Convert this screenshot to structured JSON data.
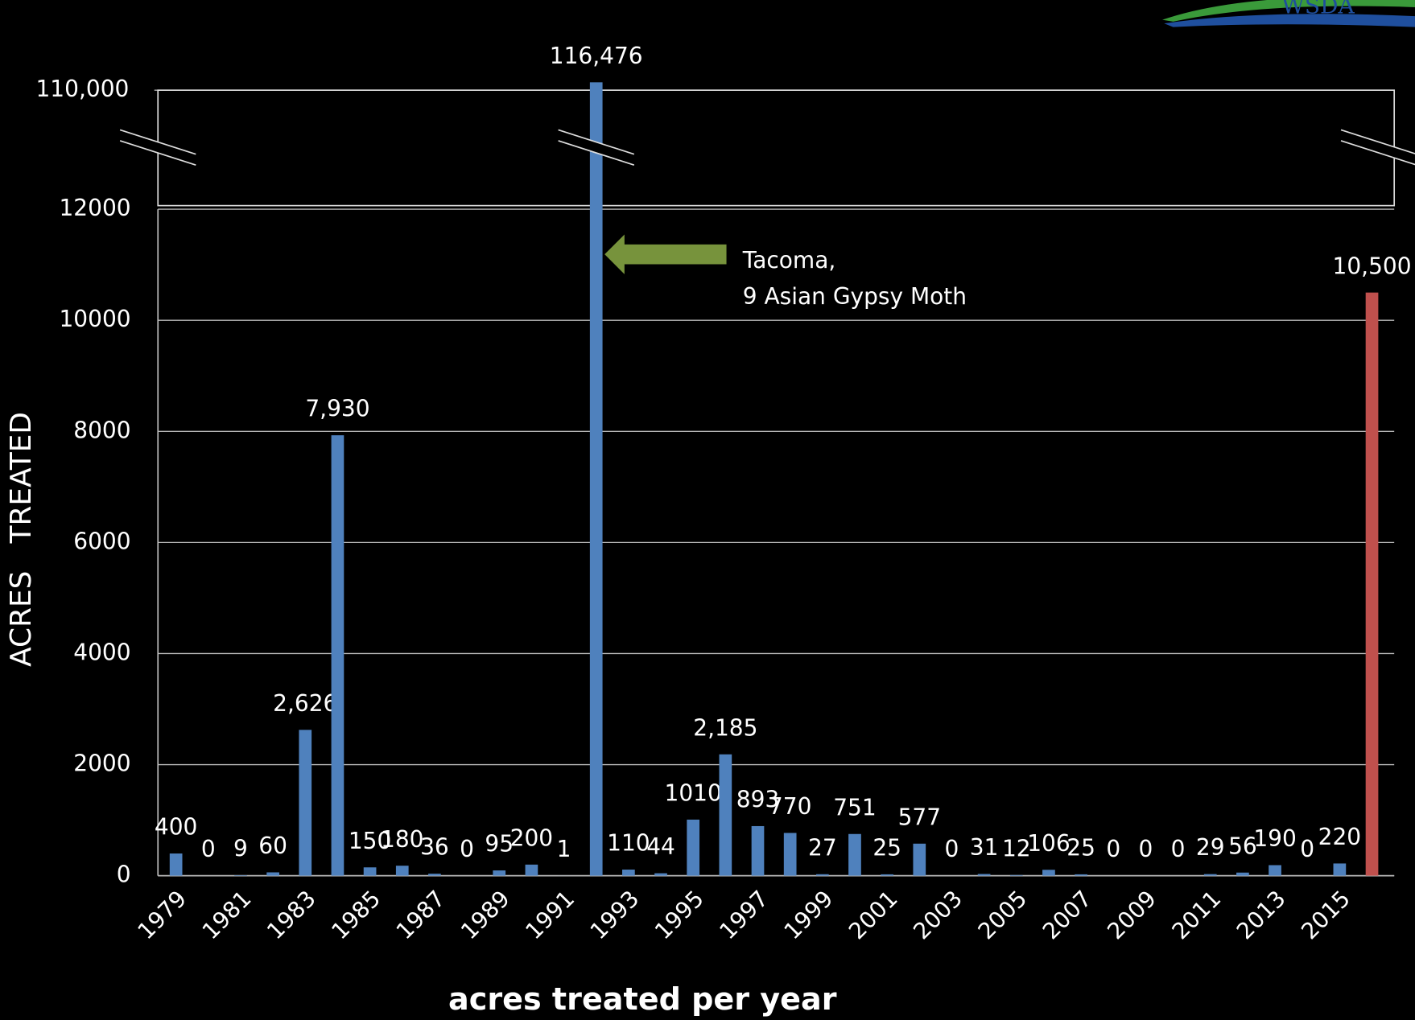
{
  "chart_data": {
    "type": "bar",
    "x_label": "acres treated per year",
    "y_label": "ACRES   TREATED",
    "logo_text": "WSDA",
    "annotation": [
      "Tacoma,",
      "9 Asian Gypsy Moth"
    ],
    "categories": [
      "1979",
      null,
      "1981",
      null,
      "1983",
      null,
      "1985",
      null,
      "1987",
      null,
      "1989",
      null,
      "1991",
      null,
      "1993",
      null,
      "1995",
      null,
      "1997",
      null,
      "1999",
      null,
      "2001",
      null,
      "2003",
      null,
      "2005",
      null,
      "2007",
      null,
      "2009",
      null,
      "2011",
      null,
      "2013",
      null,
      "2015",
      null
    ],
    "values": [
      400,
      0,
      9,
      60,
      2626,
      7930,
      150,
      180,
      36,
      0,
      95,
      200,
      1,
      116476,
      110,
      44,
      1010,
      2185,
      893,
      770,
      27,
      751,
      25,
      577,
      0,
      31,
      12,
      106,
      25,
      0,
      0,
      0,
      29,
      56,
      190,
      0,
      220,
      10500
    ],
    "value_labels": [
      "400",
      "0",
      "9",
      "60",
      "2,626",
      "7,930",
      "150",
      "180",
      "36",
      "0",
      "95",
      "200",
      "1",
      "116,476",
      "110",
      "44",
      "1010",
      "2,185",
      "893",
      "770",
      "27",
      "751",
      "25",
      "577",
      "0",
      "31",
      "12",
      "106",
      "25",
      "0",
      "0",
      "0",
      "29",
      "56",
      "190",
      "0",
      "220",
      "10,500"
    ],
    "colors": [
      "#4f81bd",
      "#4f81bd",
      "#4f81bd",
      "#4f81bd",
      "#4f81bd",
      "#4f81bd",
      "#4f81bd",
      "#4f81bd",
      "#4f81bd",
      "#4f81bd",
      "#4f81bd",
      "#4f81bd",
      "#4f81bd",
      "#4f81bd",
      "#4f81bd",
      "#4f81bd",
      "#4f81bd",
      "#4f81bd",
      "#4f81bd",
      "#4f81bd",
      "#4f81bd",
      "#4f81bd",
      "#4f81bd",
      "#4f81bd",
      "#4f81bd",
      "#4f81bd",
      "#4f81bd",
      "#4f81bd",
      "#4f81bd",
      "#4f81bd",
      "#4f81bd",
      "#4f81bd",
      "#4f81bd",
      "#4f81bd",
      "#4f81bd",
      "#4f81bd",
      "#4f81bd",
      "#c0504d"
    ],
    "ylim": [
      0,
      12000
    ],
    "yticks": [
      0,
      2000,
      4000,
      6000,
      8000,
      10000,
      12000
    ],
    "y_break": {
      "ylim": [
        12000,
        110000
      ],
      "yticks": [
        {
          "value": 110000,
          "label": "110,000"
        }
      ]
    },
    "grid": true
  }
}
